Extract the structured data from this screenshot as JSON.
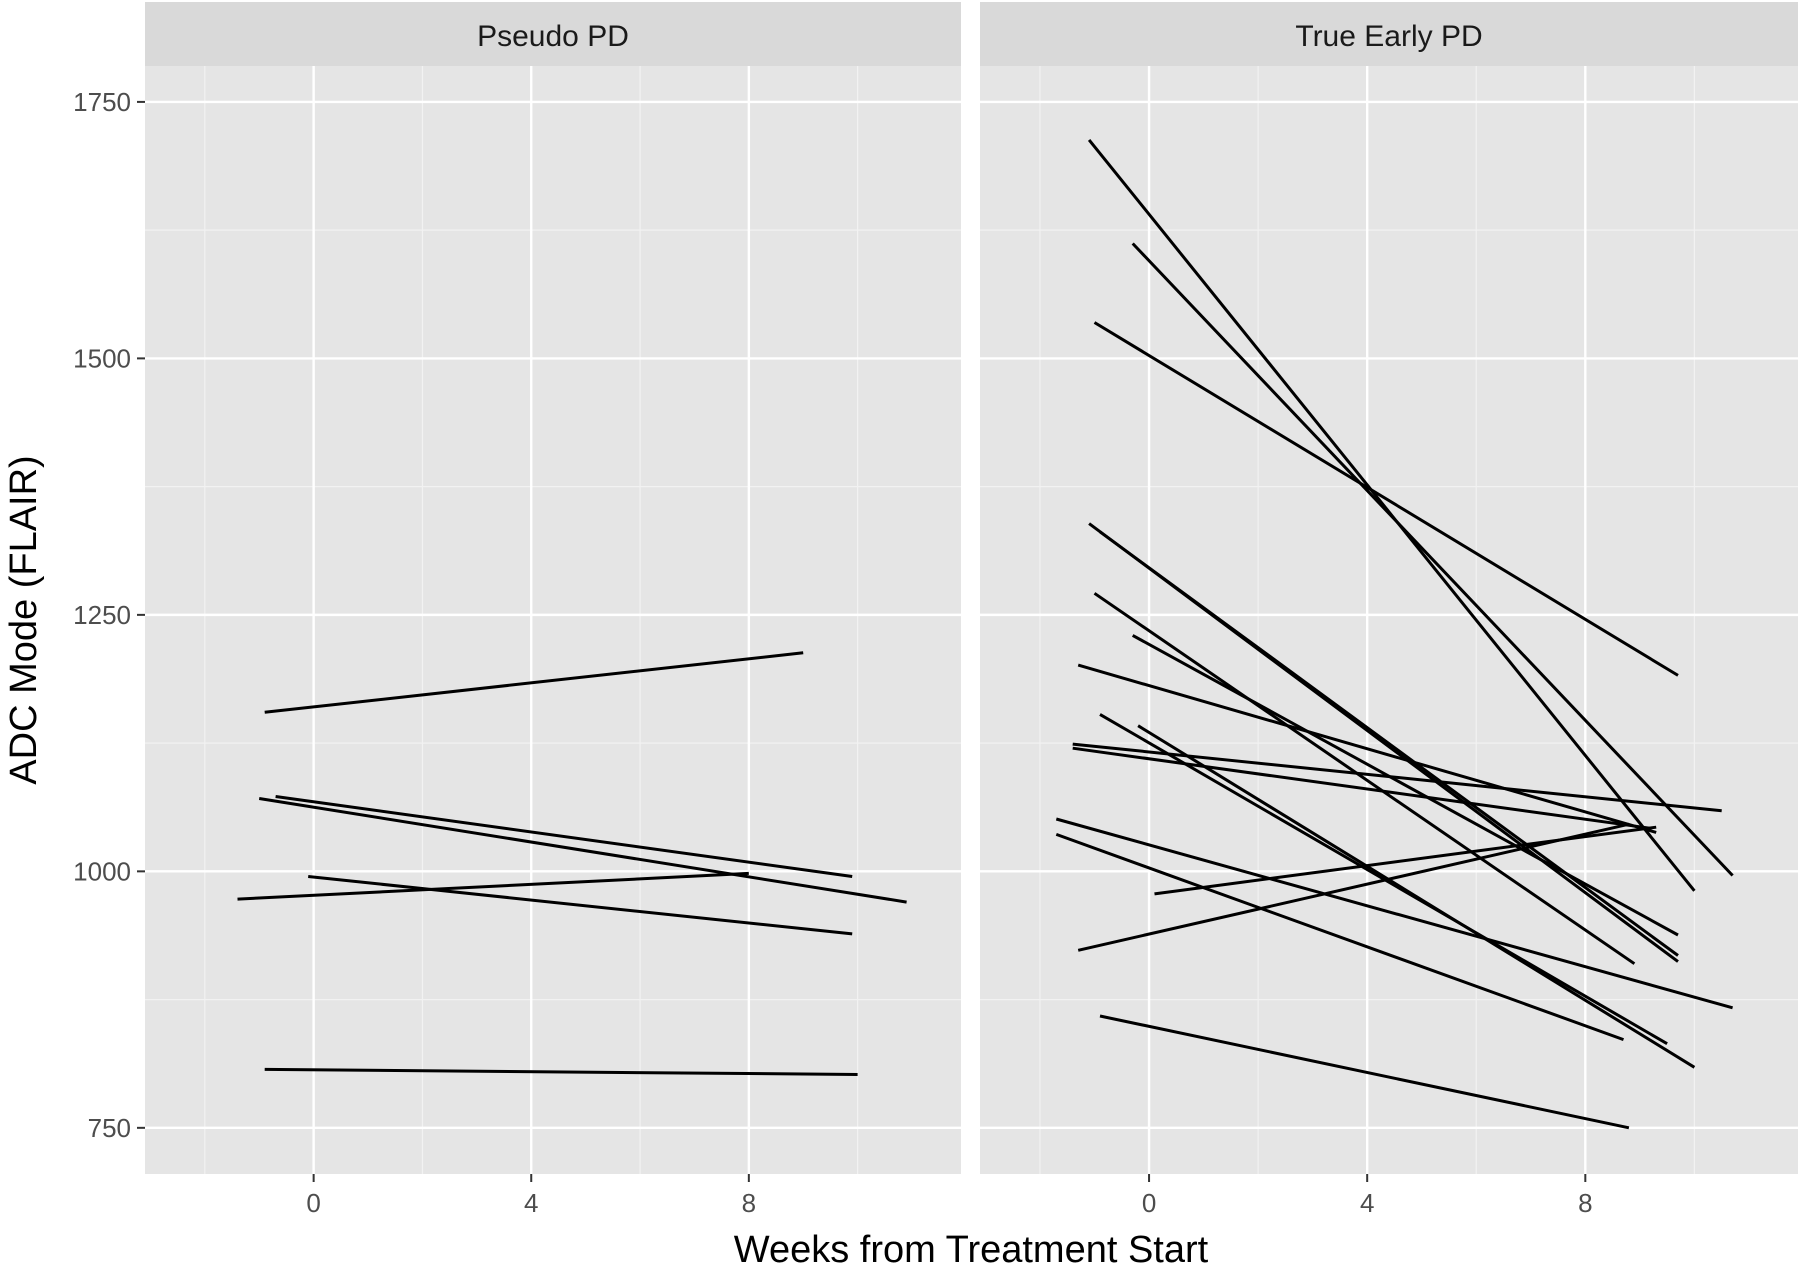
{
  "chart_data": {
    "type": "line",
    "xlabel": "Weeks from Treatment Start",
    "ylabel": "ADC Mode (FLAIR)",
    "xlim": [
      -3.1,
      11.9
    ],
    "ylim": [
      705,
      1785
    ],
    "x_ticks": [
      0,
      4,
      8
    ],
    "x_tick_labels": [
      "0",
      "4",
      "8"
    ],
    "y_ticks": [
      750,
      1000,
      1250,
      1500,
      1750
    ],
    "y_tick_labels": [
      "750",
      "1000",
      "1250",
      "1500",
      "1750"
    ],
    "grid": true,
    "legend": "none",
    "line_color": "#000000",
    "panel_background": "#e5e5e5",
    "strip_background": "#d9d9d9",
    "grid_color": "#ffffff",
    "panels": [
      {
        "label": "Pseudo PD",
        "series": [
          {
            "x": [
              -0.9,
              9.0
            ],
            "y": [
              1155,
              1213
            ]
          },
          {
            "x": [
              -0.7,
              9.9
            ],
            "y": [
              1073,
              995
            ]
          },
          {
            "x": [
              -1.0,
              10.9
            ],
            "y": [
              1071,
              970
            ]
          },
          {
            "x": [
              -1.4,
              8.0
            ],
            "y": [
              973,
              998
            ]
          },
          {
            "x": [
              -0.1,
              9.9
            ],
            "y": [
              995,
              939
            ]
          },
          {
            "x": [
              -0.9,
              10.0
            ],
            "y": [
              807,
              802
            ]
          }
        ]
      },
      {
        "label": "True Early PD",
        "series": [
          {
            "x": [
              -1.1,
              10.0
            ],
            "y": [
              1713,
              981
            ]
          },
          {
            "x": [
              -0.3,
              10.7
            ],
            "y": [
              1612,
              996
            ]
          },
          {
            "x": [
              -1.0,
              9.7
            ],
            "y": [
              1535,
              1191
            ]
          },
          {
            "x": [
              -1.1,
              9.7
            ],
            "y": [
              1339,
              912
            ]
          },
          {
            "x": [
              -0.9,
              9.7
            ],
            "y": [
              1331,
              918
            ]
          },
          {
            "x": [
              -1.0,
              8.9
            ],
            "y": [
              1271,
              910
            ]
          },
          {
            "x": [
              -0.3,
              9.7
            ],
            "y": [
              1230,
              938
            ]
          },
          {
            "x": [
              -1.3,
              9.3
            ],
            "y": [
              1201,
              1038
            ]
          },
          {
            "x": [
              -0.9,
              9.5
            ],
            "y": [
              1153,
              832
            ]
          },
          {
            "x": [
              -0.2,
              10.0
            ],
            "y": [
              1142,
              809
            ]
          },
          {
            "x": [
              -1.4,
              10.5
            ],
            "y": [
              1124,
              1059
            ]
          },
          {
            "x": [
              -1.4,
              9.2
            ],
            "y": [
              1120,
              1042
            ]
          },
          {
            "x": [
              -1.7,
              10.7
            ],
            "y": [
              1051,
              867
            ]
          },
          {
            "x": [
              -1.7,
              8.7
            ],
            "y": [
              1036,
              836
            ]
          },
          {
            "x": [
              0.1,
              9.3
            ],
            "y": [
              978,
              1043
            ]
          },
          {
            "x": [
              -1.3,
              8.8
            ],
            "y": [
              923,
              1046
            ]
          },
          {
            "x": [
              -0.9,
              8.8
            ],
            "y": [
              859,
              750
            ]
          }
        ]
      }
    ]
  }
}
